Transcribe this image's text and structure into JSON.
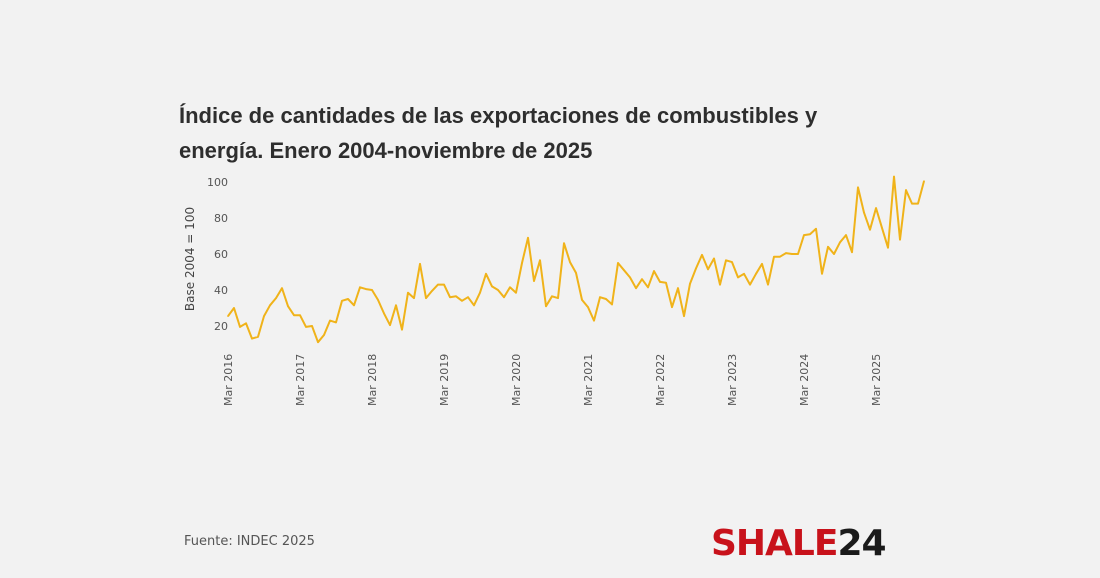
{
  "chart_data": {
    "type": "line",
    "title": "Índice de cantidades de las exportaciones de combustibles y energía. Enero 2004-noviembre de 2025",
    "xlabel": "",
    "ylabel": "Base 2004 = 100",
    "start": "2016-03",
    "end": "2025-11",
    "frequency": "monthly",
    "x_ticks": [
      "Mar 2016",
      "Mar 2017",
      "Mar 2018",
      "Mar 2019",
      "Mar 2020",
      "Mar 2021",
      "Mar 2022",
      "Mar 2023",
      "Mar 2024",
      "Mar 2025"
    ],
    "y_ticks": [
      20,
      40,
      60,
      80,
      100
    ],
    "ylim": [
      11,
      103
    ],
    "grid": false,
    "legend": "none",
    "series": [
      {
        "name": "Índice de cantidades",
        "color": "#f0b31a",
        "values": [
          25.5,
          30,
          19.5,
          21.5,
          13,
          14,
          25.5,
          31.5,
          35.5,
          41,
          31,
          26,
          26,
          19.5,
          20,
          11,
          15,
          23,
          22,
          34,
          35,
          31.5,
          41.5,
          40.5,
          40,
          34.5,
          27,
          20.5,
          31.5,
          18,
          38.5,
          35.5,
          54.5,
          35.5,
          39.5,
          43,
          43,
          36,
          36.5,
          34,
          36,
          31.5,
          38.5,
          49,
          42,
          40,
          36,
          41.5,
          38.5,
          55,
          69,
          45,
          56.5,
          31,
          36.5,
          35.5,
          66,
          55.5,
          49.5,
          34.5,
          30.5,
          23,
          36,
          35,
          32,
          55,
          51,
          47,
          41,
          46,
          41.5,
          50.5,
          44.5,
          44,
          30.5,
          41,
          25.5,
          43.5,
          52,
          59.5,
          51.5,
          57.5,
          43,
          56.5,
          55.5,
          47,
          49,
          43,
          49,
          54.5,
          43,
          58.5,
          58.5,
          60.5,
          60,
          60,
          70.5,
          71,
          74,
          49,
          64,
          60,
          66.5,
          70.5,
          61,
          97,
          83,
          73.5,
          85.5,
          74.5,
          63.5,
          103,
          68,
          95.5,
          88,
          88,
          100.5
        ]
      }
    ]
  },
  "footer": {
    "source": "Fuente: INDEC 2025",
    "logo_red": "SHALE",
    "logo_black": "24"
  }
}
